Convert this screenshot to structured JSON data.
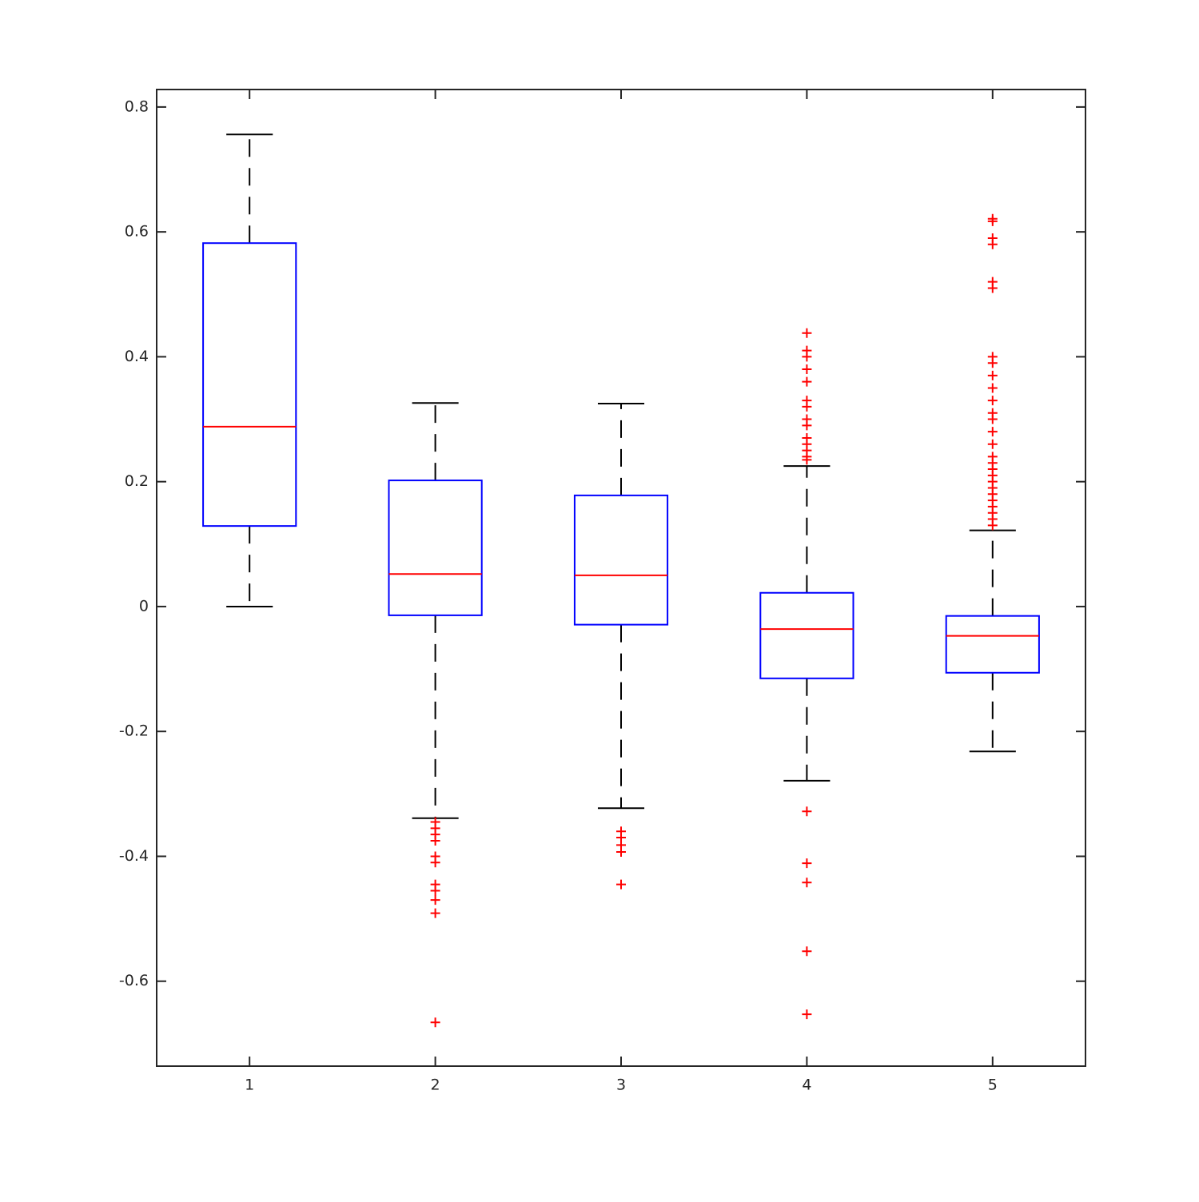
{
  "chart_data": {
    "type": "box",
    "categories": [
      "1",
      "2",
      "3",
      "4",
      "5"
    ],
    "boxes": [
      {
        "whislo": 0,
        "q1": 0.129,
        "med": 0.288,
        "q3": 0.582,
        "whishi": 0.756,
        "fliers": []
      },
      {
        "whislo": -0.339,
        "q1": -0.014,
        "med": 0.052,
        "q3": 0.202,
        "whishi": 0.326,
        "fliers": [
          -0.345,
          -0.355,
          -0.365,
          -0.375,
          -0.4,
          -0.41,
          -0.445,
          -0.455,
          -0.47,
          -0.491,
          -0.666
        ]
      },
      {
        "whislo": -0.323,
        "q1": -0.029,
        "med": 0.05,
        "q3": 0.178,
        "whishi": 0.325,
        "fliers": [
          -0.36,
          -0.37,
          -0.382,
          -0.393,
          -0.445
        ]
      },
      {
        "whislo": -0.279,
        "q1": -0.115,
        "med": -0.036,
        "q3": 0.022,
        "whishi": 0.225,
        "fliers": [
          0.438,
          0.41,
          0.4,
          0.38,
          0.36,
          0.33,
          0.32,
          0.3,
          0.29,
          0.27,
          0.26,
          0.25,
          0.24,
          0.235,
          -0.328,
          -0.411,
          -0.442,
          -0.552,
          -0.653
        ]
      },
      {
        "whislo": -0.232,
        "q1": -0.106,
        "med": -0.047,
        "q3": -0.015,
        "whishi": 0.122,
        "fliers": [
          0.621,
          0.617,
          0.59,
          0.58,
          0.52,
          0.51,
          0.4,
          0.39,
          0.37,
          0.35,
          0.33,
          0.31,
          0.3,
          0.28,
          0.26,
          0.24,
          0.23,
          0.22,
          0.21,
          0.2,
          0.19,
          0.18,
          0.17,
          0.16,
          0.15,
          0.14,
          0.13
        ]
      }
    ],
    "box_color": "#0000ff",
    "median_color": "#ff0000",
    "whisker_color": "#000000",
    "flier_color": "#ff0000",
    "ylim": [
      -0.736,
      0.828
    ],
    "yticks": [
      -0.6,
      -0.4,
      -0.2,
      0,
      0.2,
      0.4,
      0.6,
      0.8
    ]
  }
}
